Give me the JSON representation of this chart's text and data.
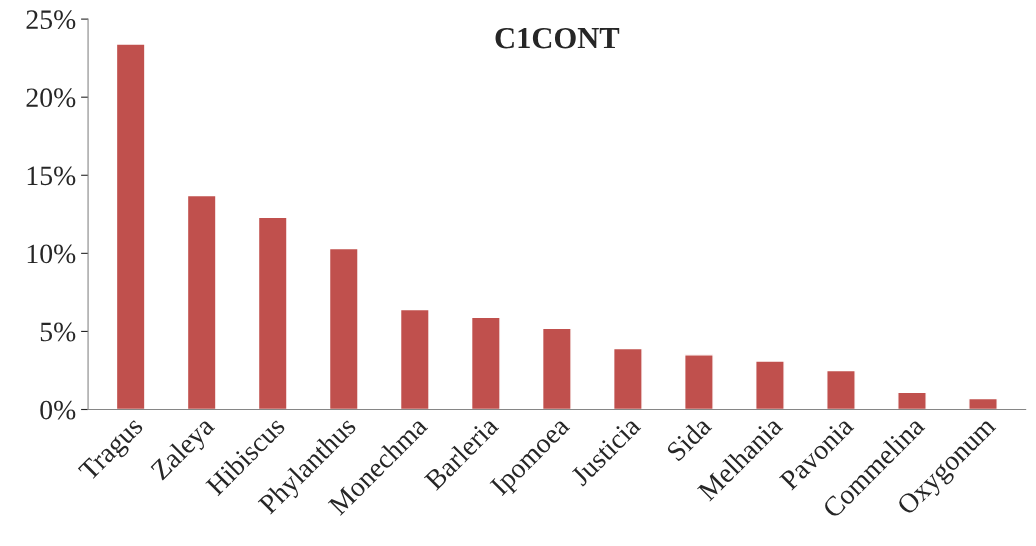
{
  "chart_data": {
    "type": "bar",
    "title": "C1CONT",
    "categories": [
      "Tragus",
      "Zaleya",
      "Hibiscus",
      "Phylanthus",
      "Monechma",
      "Barleria",
      "Ipomoea",
      "Justicia",
      "Sida",
      "Melhania",
      "Pavonia",
      "Commelina",
      "Oxygonum"
    ],
    "values": [
      23.4,
      13.7,
      12.3,
      10.3,
      6.4,
      5.9,
      5.2,
      3.9,
      3.5,
      3.1,
      2.5,
      1.1,
      0.7
    ],
    "color": "#c0504d",
    "ylim": [
      0,
      25
    ],
    "yticks": [
      {
        "value": 0,
        "label": "0%"
      },
      {
        "value": 5,
        "label": "5%"
      },
      {
        "value": 10,
        "label": "10%"
      },
      {
        "value": 15,
        "label": "15%"
      },
      {
        "value": 20,
        "label": "20%"
      },
      {
        "value": 25,
        "label": "25%"
      }
    ],
    "grid": false,
    "legend": false
  }
}
